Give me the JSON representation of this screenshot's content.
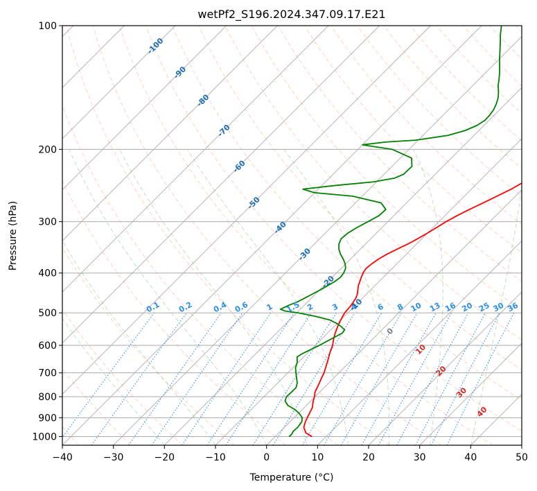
{
  "chart_data": {
    "type": "line",
    "title": "wetPf2_S196.2024.347.09.17.E21",
    "xlabel": "Temperature (°C)",
    "ylabel": "Pressure (hPa)",
    "xlim": [
      -40,
      50
    ],
    "ylim": [
      1050,
      100
    ],
    "y_scale": "log",
    "x_ticks": [
      -40,
      -30,
      -20,
      -10,
      0,
      10,
      20,
      30,
      40,
      50
    ],
    "y_ticks": [
      100,
      200,
      300,
      400,
      500,
      600,
      700,
      800,
      900,
      1000
    ],
    "x_tick_labels": [
      "−40",
      "−30",
      "−20",
      "−10",
      "0",
      "10",
      "20",
      "30",
      "40",
      "50"
    ],
    "y_tick_labels": [
      "100",
      "200",
      "300",
      "400",
      "500",
      "600",
      "700",
      "800",
      "900",
      "1000"
    ],
    "grid": true,
    "skew_t": true,
    "colors": {
      "temperature": "#ff0000",
      "dewpoint": "#008000",
      "isotherm_labels": "#1f6fb4",
      "mixing_ratio": "#2b8ee8",
      "dry_adiabat": "#ff7f50",
      "moist_adiabat": "#2ca02c",
      "wet_bulb_labels": "#d62728"
    },
    "series": [
      {
        "key": "temperature",
        "points": [
          [
            1000,
            7.2
          ],
          [
            980,
            5.3
          ],
          [
            950,
            3.8
          ],
          [
            920,
            3.0
          ],
          [
            900,
            2.6
          ],
          [
            870,
            2.0
          ],
          [
            850,
            1.6
          ],
          [
            820,
            0.5
          ],
          [
            800,
            -0.1
          ],
          [
            780,
            -0.9
          ],
          [
            750,
            -1.6
          ],
          [
            720,
            -2.4
          ],
          [
            700,
            -2.9
          ],
          [
            680,
            -3.6
          ],
          [
            650,
            -4.7
          ],
          [
            620,
            -5.9
          ],
          [
            600,
            -6.6
          ],
          [
            580,
            -7.6
          ],
          [
            560,
            -8.5
          ],
          [
            540,
            -9.3
          ],
          [
            520,
            -10.0
          ],
          [
            500,
            -10.6
          ],
          [
            480,
            -10.8
          ],
          [
            460,
            -11.3
          ],
          [
            450,
            -11.8
          ],
          [
            430,
            -13.2
          ],
          [
            410,
            -14.3
          ],
          [
            400,
            -14.8
          ],
          [
            390,
            -15.1
          ],
          [
            380,
            -14.9
          ],
          [
            370,
            -14.5
          ],
          [
            360,
            -13.8
          ],
          [
            350,
            -12.8
          ],
          [
            340,
            -11.7
          ],
          [
            330,
            -10.8
          ],
          [
            320,
            -10.0
          ],
          [
            310,
            -9.3
          ],
          [
            300,
            -8.6
          ],
          [
            290,
            -7.6
          ],
          [
            280,
            -6.4
          ],
          [
            270,
            -5.0
          ],
          [
            260,
            -3.6
          ],
          [
            250,
            -2.2
          ],
          [
            240,
            -1.1
          ],
          [
            230,
            -0.1
          ],
          [
            220,
            0.7
          ],
          [
            210,
            1.7
          ],
          [
            200,
            2.7
          ],
          [
            190,
            3.6
          ],
          [
            180,
            4.4
          ],
          [
            170,
            5.3
          ],
          [
            160,
            6.5
          ],
          [
            150,
            7.8
          ],
          [
            140,
            8.9
          ],
          [
            130,
            10.1
          ],
          [
            120,
            11.4
          ],
          [
            110,
            12.4
          ],
          [
            105,
            12.6
          ],
          [
            100,
            12.5
          ]
        ]
      },
      {
        "key": "dewpoint",
        "points": [
          [
            1000,
            2.7
          ],
          [
            990,
            2.8
          ],
          [
            970,
            2.5
          ],
          [
            950,
            2.6
          ],
          [
            920,
            2.3
          ],
          [
            900,
            1.6
          ],
          [
            880,
            0.3
          ],
          [
            860,
            -1.4
          ],
          [
            840,
            -3.6
          ],
          [
            820,
            -5.0
          ],
          [
            800,
            -5.6
          ],
          [
            780,
            -5.5
          ],
          [
            760,
            -5.5
          ],
          [
            740,
            -6.2
          ],
          [
            720,
            -7.3
          ],
          [
            700,
            -8.4
          ],
          [
            680,
            -9.5
          ],
          [
            660,
            -10.2
          ],
          [
            640,
            -11.3
          ],
          [
            630,
            -11.0
          ],
          [
            615,
            -10.1
          ],
          [
            600,
            -9.2
          ],
          [
            580,
            -8.2
          ],
          [
            560,
            -7.1
          ],
          [
            550,
            -7.3
          ],
          [
            540,
            -8.6
          ],
          [
            530,
            -10.2
          ],
          [
            520,
            -12.2
          ],
          [
            510,
            -15.6
          ],
          [
            500,
            -19.7
          ],
          [
            495,
            -22.6
          ],
          [
            490,
            -23.9
          ],
          [
            480,
            -23.1
          ],
          [
            470,
            -22.0
          ],
          [
            460,
            -21.3
          ],
          [
            450,
            -20.6
          ],
          [
            440,
            -19.9
          ],
          [
            430,
            -19.3
          ],
          [
            420,
            -18.7
          ],
          [
            410,
            -18.4
          ],
          [
            400,
            -18.6
          ],
          [
            390,
            -19.1
          ],
          [
            380,
            -20.1
          ],
          [
            370,
            -21.4
          ],
          [
            360,
            -22.9
          ],
          [
            350,
            -24.2
          ],
          [
            340,
            -25.2
          ],
          [
            330,
            -25.8
          ],
          [
            320,
            -25.6
          ],
          [
            310,
            -24.9
          ],
          [
            300,
            -23.9
          ],
          [
            290,
            -22.9
          ],
          [
            280,
            -22.8
          ],
          [
            270,
            -25.0
          ],
          [
            260,
            -31.9
          ],
          [
            255,
            -40.0
          ],
          [
            250,
            -43.0
          ],
          [
            245,
            -37.5
          ],
          [
            240,
            -30.6
          ],
          [
            235,
            -27.2
          ],
          [
            230,
            -26.2
          ],
          [
            220,
            -26.1
          ],
          [
            210,
            -27.8
          ],
          [
            200,
            -33.3
          ],
          [
            195,
            -40.0
          ],
          [
            192,
            -36.1
          ],
          [
            190,
            -30.5
          ],
          [
            185,
            -25.1
          ],
          [
            180,
            -22.7
          ],
          [
            175,
            -21.4
          ],
          [
            170,
            -20.8
          ],
          [
            165,
            -20.9
          ],
          [
            160,
            -21.2
          ],
          [
            155,
            -21.8
          ],
          [
            150,
            -22.6
          ],
          [
            145,
            -23.7
          ],
          [
            140,
            -25.0
          ],
          [
            135,
            -26.1
          ],
          [
            130,
            -27.3
          ],
          [
            120,
            -30.1
          ],
          [
            110,
            -33.0
          ],
          [
            105,
            -34.6
          ],
          [
            100,
            -36.1
          ]
        ]
      }
    ],
    "isotherm_labels": [
      "-100",
      "-90",
      "-80",
      "-70",
      "-60",
      "-50",
      "-40",
      "-30",
      "-20",
      "-10"
    ],
    "mixing_ratio_labels": [
      "0.1",
      "0.2",
      "0.4",
      "0.6",
      "1",
      "1.5",
      "2",
      "3",
      "4",
      "6",
      "8",
      "10",
      "13",
      "16",
      "20",
      "25",
      "30",
      "36"
    ],
    "wet_bulb_labels": [
      "0",
      "10",
      "20",
      "30",
      "40"
    ]
  }
}
